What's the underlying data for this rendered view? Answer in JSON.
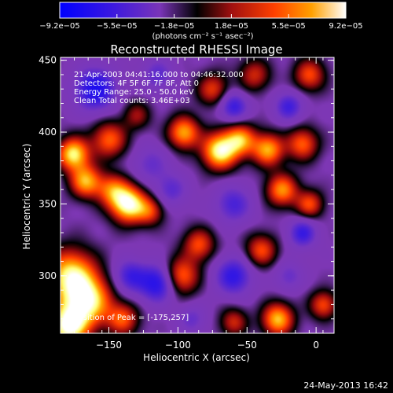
{
  "colorbar": {
    "tick_labels": [
      "-9.2e-05",
      "-5.5e-05",
      "-1.8e-05",
      "1.8e-05",
      "5.5e-05",
      "9.2e-05"
    ],
    "unit_label": "(photons cm⁻² s⁻¹ asec⁻²)"
  },
  "chart_data": {
    "type": "heatmap",
    "title": "Reconstructed RHESSI Image",
    "xlabel": "Heliocentric X (arcsec)",
    "ylabel": "Heliocentric Y (arcsec)",
    "xlim": [
      -185,
      13
    ],
    "ylim": [
      260,
      452
    ],
    "x_ticks": [
      -150,
      -100,
      -50,
      0
    ],
    "y_ticks": [
      300,
      350,
      400,
      450
    ],
    "x_tick_labels": [
      "−150",
      "−100",
      "−50",
      "0"
    ],
    "y_tick_labels": [
      "300",
      "350",
      "400",
      "450"
    ],
    "colorscale": [
      "#0000ff",
      "#4020d8",
      "#7030c0",
      "#7a35b8",
      "#000000",
      "#b01010",
      "#ff4000",
      "#ffa000",
      "#ffff80",
      "#ffffff"
    ],
    "value_range": [
      -9.2e-05,
      9.2e-05
    ],
    "annotations": [
      "21-Apr-2003 04:41:16.000 to 04:46:32.000",
      "Detectors: 4F 5F 6F 7F 8F, Att 0",
      "Energy Range: 25.0 - 50.0 keV",
      "Clean     Total counts: 3.46E+03"
    ],
    "peak_label": "Position of Peak = [-175,257]",
    "peak_position": [
      -175,
      257
    ],
    "blobs": [
      {
        "x": -176,
        "y": 385,
        "amp": 0.9,
        "r": 8
      },
      {
        "x": -167,
        "y": 366,
        "amp": 0.75,
        "r": 8
      },
      {
        "x": -150,
        "y": 395,
        "amp": 0.6,
        "r": 9
      },
      {
        "x": -136,
        "y": 350,
        "amp": 1.0,
        "r": 9
      },
      {
        "x": -148,
        "y": 360,
        "amp": 0.55,
        "r": 8
      },
      {
        "x": -96,
        "y": 400,
        "amp": 0.75,
        "r": 8
      },
      {
        "x": -70,
        "y": 387,
        "amp": 0.95,
        "r": 9
      },
      {
        "x": -55,
        "y": 395,
        "amp": 0.7,
        "r": 8
      },
      {
        "x": -35,
        "y": 388,
        "amp": 0.75,
        "r": 8
      },
      {
        "x": -10,
        "y": 392,
        "amp": 0.6,
        "r": 8
      },
      {
        "x": -25,
        "y": 360,
        "amp": 0.7,
        "r": 8
      },
      {
        "x": -5,
        "y": 350,
        "amp": 0.55,
        "r": 7
      },
      {
        "x": -120,
        "y": 345,
        "amp": 0.45,
        "r": 7
      },
      {
        "x": -178,
        "y": 300,
        "amp": 0.9,
        "r": 13
      },
      {
        "x": -165,
        "y": 282,
        "amp": 0.85,
        "r": 12
      },
      {
        "x": -180,
        "y": 265,
        "amp": 1.0,
        "r": 10
      },
      {
        "x": -140,
        "y": 270,
        "amp": 0.55,
        "r": 8
      },
      {
        "x": -98,
        "y": 300,
        "amp": 0.65,
        "r": 9
      },
      {
        "x": -85,
        "y": 322,
        "amp": 0.55,
        "r": 8
      },
      {
        "x": -40,
        "y": 318,
        "amp": 0.55,
        "r": 8
      },
      {
        "x": -28,
        "y": 270,
        "amp": 0.8,
        "r": 8
      },
      {
        "x": 5,
        "y": 280,
        "amp": 0.55,
        "r": 7
      },
      {
        "x": -60,
        "y": 268,
        "amp": 0.45,
        "r": 7
      },
      {
        "x": -75,
        "y": 430,
        "amp": 0.5,
        "r": 8
      },
      {
        "x": -45,
        "y": 440,
        "amp": 0.45,
        "r": 8
      },
      {
        "x": -5,
        "y": 440,
        "amp": 0.55,
        "r": 8
      },
      {
        "x": -130,
        "y": 412,
        "amp": 0.35,
        "r": 7
      },
      {
        "x": -160,
        "y": 430,
        "amp": -0.75,
        "r": 10
      },
      {
        "x": -115,
        "y": 440,
        "amp": -0.35,
        "r": 8
      },
      {
        "x": -60,
        "y": 418,
        "amp": -0.55,
        "r": 7
      },
      {
        "x": -20,
        "y": 418,
        "amp": -0.5,
        "r": 7
      },
      {
        "x": -120,
        "y": 378,
        "amp": -0.3,
        "r": 9
      },
      {
        "x": -105,
        "y": 360,
        "amp": -0.35,
        "r": 8
      },
      {
        "x": -60,
        "y": 350,
        "amp": -0.45,
        "r": 9
      },
      {
        "x": -10,
        "y": 330,
        "amp": -0.55,
        "r": 7
      },
      {
        "x": -115,
        "y": 295,
        "amp": -0.7,
        "r": 9
      },
      {
        "x": -135,
        "y": 300,
        "amp": -0.5,
        "r": 8
      },
      {
        "x": -60,
        "y": 300,
        "amp": -0.6,
        "r": 9
      },
      {
        "x": -90,
        "y": 270,
        "amp": -0.3,
        "r": 7
      },
      {
        "x": -20,
        "y": 300,
        "amp": -0.3,
        "r": 7
      }
    ]
  },
  "footer": {
    "date": "24-May-2013 16:42"
  }
}
